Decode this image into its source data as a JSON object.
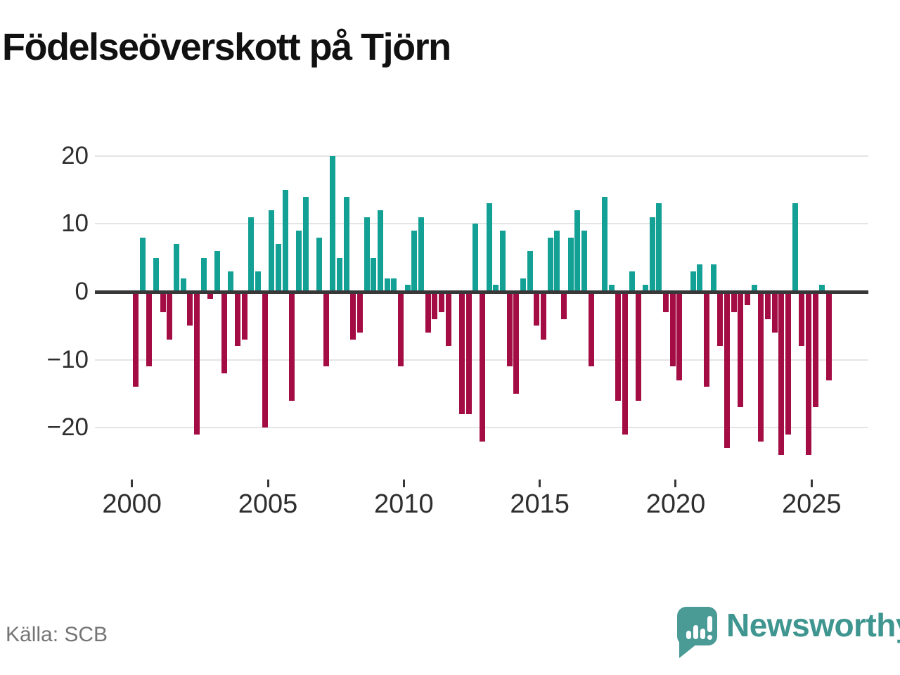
{
  "title": "Födelseöverskott på Tjörn",
  "source": "Källa: SCB",
  "brand": {
    "name": "Newsworthy",
    "icon": "bar-chart-speech-bubble-icon"
  },
  "colors": {
    "positive_bar": "#13a095",
    "negative_bar": "#a40d43",
    "gridline": "#e4e4e4",
    "axis_line": "#383838",
    "axis_text": "#2e2e2e",
    "title_text": "#111111",
    "source_text": "#757575",
    "brand_teal": "#4a9a96"
  },
  "chart_data": {
    "type": "bar",
    "title": "Födelseöverskott på Tjörn",
    "xlabel": "",
    "ylabel": "",
    "frequency": "quarterly",
    "start_period": "2000Q1",
    "end_period": "2025Q3",
    "x_tick_years": [
      2000,
      2005,
      2010,
      2015,
      2020,
      2025
    ],
    "y_ticks": [
      20,
      10,
      0,
      -10,
      -20
    ],
    "ylim": [
      -25,
      21
    ],
    "grid": true,
    "legend": false,
    "values_by_year": {
      "2000": [
        -14,
        8,
        -11,
        5
      ],
      "2001": [
        -3,
        -7,
        7,
        2
      ],
      "2002": [
        -5,
        -21,
        5,
        -1
      ],
      "2003": [
        6,
        -12,
        3,
        -8
      ],
      "2004": [
        -7,
        11,
        3,
        -20
      ],
      "2005": [
        12,
        7,
        15,
        -16
      ],
      "2006": [
        9,
        14,
        0,
        8
      ],
      "2007": [
        -11,
        20,
        5,
        14
      ],
      "2008": [
        -7,
        -6,
        11,
        5
      ],
      "2009": [
        12,
        2,
        2,
        -11
      ],
      "2010": [
        1,
        9,
        11,
        -6
      ],
      "2011": [
        -4,
        -3,
        -8,
        0
      ],
      "2012": [
        -18,
        -18,
        10,
        -22
      ],
      "2013": [
        13,
        1,
        9,
        -11
      ],
      "2014": [
        -15,
        2,
        6,
        -5
      ],
      "2015": [
        -7,
        8,
        9,
        -4
      ],
      "2016": [
        8,
        12,
        9,
        -11
      ],
      "2017": [
        0,
        14,
        1,
        -16
      ],
      "2018": [
        -21,
        3,
        -16,
        1
      ],
      "2019": [
        11,
        13,
        -3,
        -11
      ],
      "2020": [
        -13,
        0,
        3,
        4
      ],
      "2021": [
        -14,
        4,
        -8,
        -23
      ],
      "2022": [
        -3,
        -17,
        -2,
        1
      ],
      "2023": [
        -22,
        -4,
        -6,
        -24
      ],
      "2024": [
        -21,
        13,
        -8,
        -24
      ],
      "2025": [
        -17,
        1,
        -13
      ]
    }
  }
}
